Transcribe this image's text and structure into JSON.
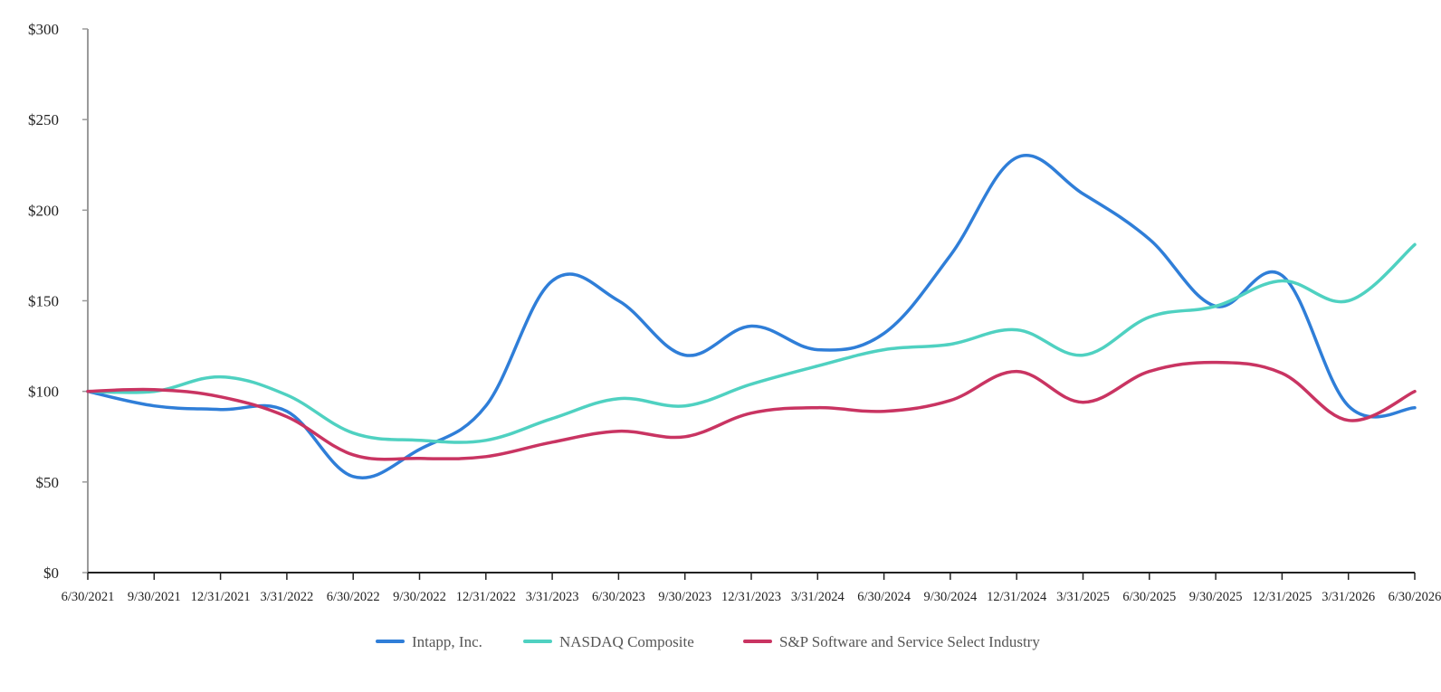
{
  "chart_data": {
    "type": "line",
    "title": "",
    "xlabel": "",
    "ylabel": "",
    "ylim": [
      0,
      300
    ],
    "y_ticks": [
      "$0",
      "$50",
      "$100",
      "$150",
      "$200",
      "$250",
      "$300"
    ],
    "y_tick_values": [
      0,
      50,
      100,
      150,
      200,
      250,
      300
    ],
    "categories": [
      "6/30/2021",
      "9/30/2021",
      "12/31/2021",
      "3/31/2022",
      "6/30/2022",
      "9/30/2022",
      "12/31/2022",
      "3/31/2023",
      "6/30/2023",
      "9/30/2023",
      "12/31/2023",
      "3/31/2024",
      "6/30/2024",
      "9/30/2024",
      "12/31/2024",
      "3/31/2025",
      "6/30/2025",
      "9/30/2025",
      "12/31/2025",
      "3/31/2026",
      "6/30/2026"
    ],
    "series": [
      {
        "name": "Intapp, Inc.",
        "color": "#2f7ed8",
        "values": [
          100,
          92,
          90,
          89,
          53,
          68,
          92,
          161,
          150,
          120,
          136,
          123,
          132,
          175,
          229,
          209,
          184,
          147,
          164,
          92,
          91
        ]
      },
      {
        "name": "NASDAQ Composite",
        "color": "#4fd1c1",
        "values": [
          100,
          100,
          108,
          98,
          77,
          73,
          73,
          85,
          96,
          92,
          104,
          114,
          123,
          126,
          134,
          120,
          141,
          147,
          161,
          150,
          181
        ]
      },
      {
        "name": "S&P Software and Service Select Industry",
        "color": "#c93462",
        "values": [
          100,
          101,
          97,
          86,
          65,
          63,
          64,
          72,
          78,
          75,
          88,
          91,
          89,
          95,
          111,
          94,
          111,
          116,
          110,
          84,
          100
        ]
      }
    ],
    "grid": false,
    "legend_position": "bottom-center"
  }
}
